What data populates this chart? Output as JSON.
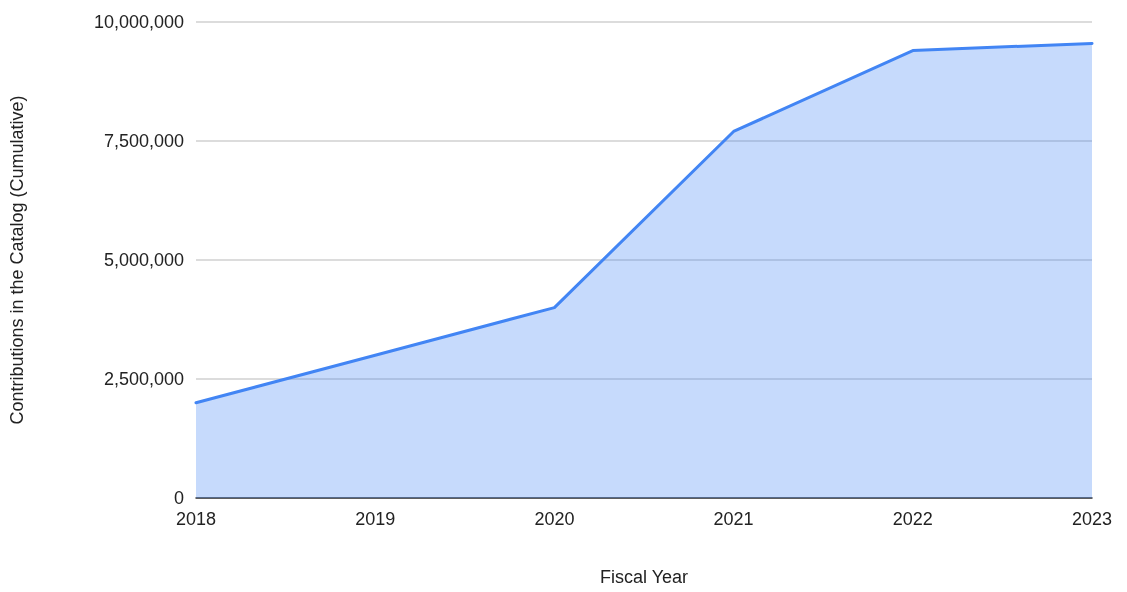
{
  "chart_data": {
    "type": "area",
    "xlabel": "Fiscal Year",
    "ylabel": "Contributions in the Catalog (Cumulative)",
    "categories": [
      "2018",
      "2019",
      "2020",
      "2021",
      "2022",
      "2023"
    ],
    "series": [
      {
        "color": "#4285f4",
        "values": [
          2000000,
          3000000,
          4000000,
          7700000,
          9400000,
          9550000
        ]
      }
    ],
    "ylim": [
      0,
      10000000
    ],
    "yticks": [
      0,
      {
        "value": 2500000,
        "label": "2,500,000"
      },
      {
        "value": 5000000,
        "label": "5,000,000"
      },
      {
        "value": 7500000,
        "label": "7,500,000"
      },
      {
        "value": 10000000,
        "label": "10,000,000"
      }
    ],
    "grid": "y",
    "marker": "none",
    "line_style": "solid"
  }
}
